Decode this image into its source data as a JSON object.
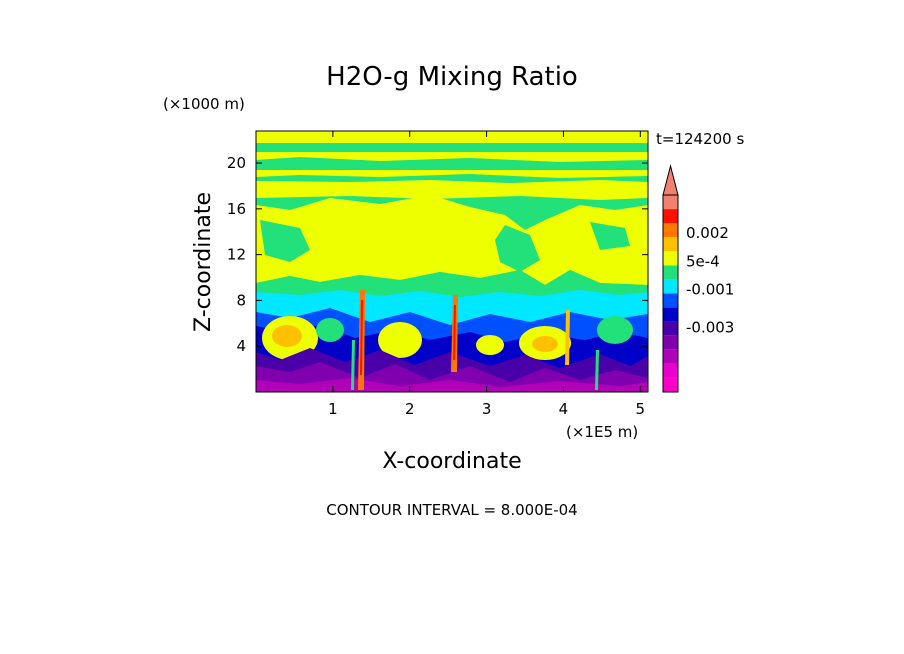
{
  "chart_data": {
    "type": "heatmap",
    "title": "H2O-g Mixing Ratio",
    "xlabel": "X-coordinate",
    "ylabel": "Z-coordinate",
    "x_unit": "(×1E5 m)",
    "y_unit": "(×1000 m)",
    "time_label": "t=124200 s",
    "footer": "CONTOUR INTERVAL = 8.000E-04",
    "xlim": [
      0,
      5.1
    ],
    "ylim": [
      0,
      22.8
    ],
    "x_ticks": [
      1,
      2,
      3,
      4,
      5
    ],
    "x_tick_labels": [
      "1",
      "2",
      "3",
      "4",
      "5"
    ],
    "y_ticks": [
      4,
      8,
      12,
      16,
      20
    ],
    "y_tick_labels": [
      "4",
      "8",
      "12",
      "16",
      "20"
    ],
    "contour_interval": 0.0008,
    "colorbar": {
      "levels": [
        -0.0056,
        -0.0048,
        -0.004,
        -0.0032,
        -0.0024,
        -0.0016,
        -0.0008,
        0.0,
        0.0008,
        0.0016,
        0.0024,
        0.0032
      ],
      "colors": [
        "#ff00cc",
        "#e800cc",
        "#b000b8",
        "#8000b0",
        "#4a00a8",
        "#0000c8",
        "#0050ff",
        "#00e8ff",
        "#22e07a",
        "#eeff00",
        "#ffc000",
        "#ff7700",
        "#ff1100",
        "#f08070"
      ],
      "labels": [
        {
          "text": "0.002",
          "value": 0.002
        },
        {
          "text": "5e-4",
          "value": 0.0005
        },
        {
          "text": "-0.001",
          "value": -0.001
        },
        {
          "text": "-0.003",
          "value": -0.003
        }
      ],
      "extend_top_arrow": true
    },
    "regions": [
      {
        "band": "z 0-3",
        "field": "mostly -0.003 to -0.001 (purple/blue)"
      },
      {
        "band": "z 3-8",
        "field": "-0.001 to 0.0008 with 0.0008-0.002 patches (cyan/green/yellow/orange)"
      },
      {
        "band": "z 8-19",
        "field": "0 to 0.0016 (green/yellow)"
      },
      {
        "band": "z 19-23",
        "field": "0 to 0.0016 banded (green/yellow)"
      }
    ]
  }
}
